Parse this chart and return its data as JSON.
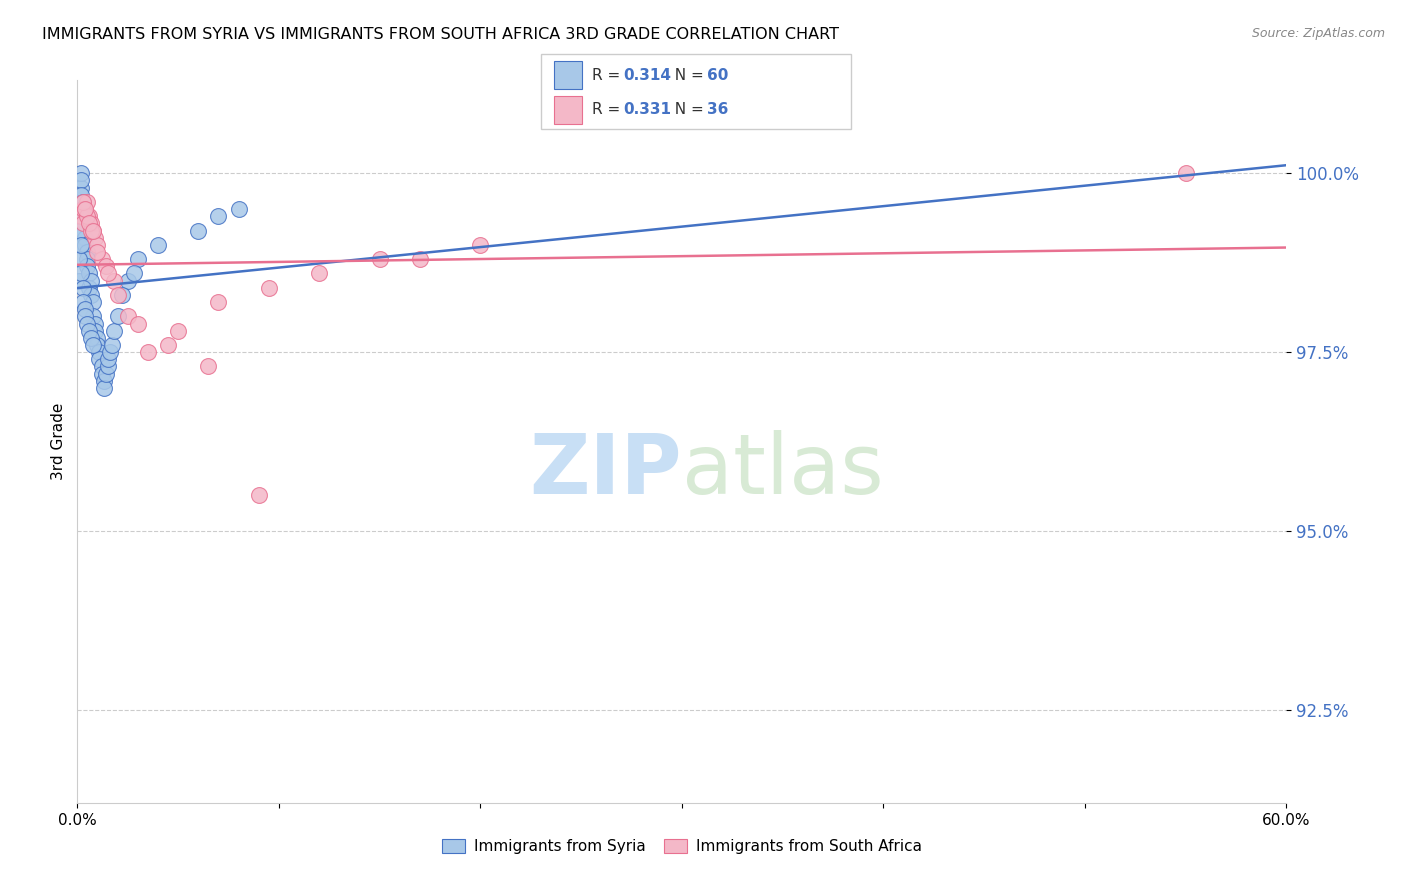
{
  "title": "IMMIGRANTS FROM SYRIA VS IMMIGRANTS FROM SOUTH AFRICA 3RD GRADE CORRELATION CHART",
  "source": "Source: ZipAtlas.com",
  "ylabel_label": "3rd Grade",
  "legend_syria": "Immigrants from Syria",
  "legend_sa": "Immigrants from South Africa",
  "R_syria": "0.314",
  "N_syria": "60",
  "R_sa": "0.331",
  "N_sa": "36",
  "color_syria_fill": "#a8c8e8",
  "color_sa_fill": "#f4b8c8",
  "color_syria_edge": "#4472c4",
  "color_sa_edge": "#e87090",
  "color_text_blue": "#4472c4",
  "color_watermark": "#ddeeff",
  "xlim": [
    0.0,
    0.6
  ],
  "ylim": [
    91.2,
    101.3
  ],
  "yticks": [
    92.5,
    95.0,
    97.5,
    100.0
  ],
  "ytick_labels": [
    "92.5%",
    "95.0%",
    "97.5%",
    "100.0%"
  ],
  "syria_x": [
    0.001,
    0.001,
    0.001,
    0.002,
    0.002,
    0.002,
    0.002,
    0.003,
    0.003,
    0.003,
    0.003,
    0.004,
    0.004,
    0.004,
    0.005,
    0.005,
    0.005,
    0.006,
    0.006,
    0.007,
    0.007,
    0.008,
    0.008,
    0.009,
    0.009,
    0.01,
    0.01,
    0.011,
    0.011,
    0.012,
    0.012,
    0.013,
    0.013,
    0.014,
    0.015,
    0.015,
    0.016,
    0.017,
    0.018,
    0.02,
    0.001,
    0.001,
    0.002,
    0.002,
    0.003,
    0.003,
    0.004,
    0.004,
    0.005,
    0.006,
    0.007,
    0.008,
    0.025,
    0.03,
    0.04,
    0.06,
    0.07,
    0.08,
    0.022,
    0.028
  ],
  "syria_y": [
    98.5,
    99.0,
    99.5,
    99.8,
    100.0,
    99.9,
    99.7,
    99.6,
    99.5,
    99.4,
    99.2,
    99.3,
    99.1,
    99.0,
    98.9,
    98.8,
    98.7,
    98.6,
    98.4,
    98.5,
    98.3,
    98.2,
    98.0,
    97.9,
    97.8,
    97.7,
    97.6,
    97.5,
    97.4,
    97.3,
    97.2,
    97.1,
    97.0,
    97.2,
    97.3,
    97.4,
    97.5,
    97.6,
    97.8,
    98.0,
    98.8,
    99.2,
    99.0,
    98.6,
    98.4,
    98.2,
    98.1,
    98.0,
    97.9,
    97.8,
    97.7,
    97.6,
    98.5,
    98.8,
    99.0,
    99.2,
    99.4,
    99.5,
    98.3,
    98.6
  ],
  "sa_x": [
    0.002,
    0.003,
    0.004,
    0.005,
    0.006,
    0.007,
    0.008,
    0.009,
    0.01,
    0.012,
    0.014,
    0.018,
    0.025,
    0.035,
    0.05,
    0.07,
    0.095,
    0.12,
    0.15,
    0.2,
    0.003,
    0.005,
    0.007,
    0.01,
    0.015,
    0.02,
    0.03,
    0.045,
    0.065,
    0.09,
    0.003,
    0.004,
    0.006,
    0.008,
    0.55,
    0.17
  ],
  "sa_y": [
    99.4,
    99.3,
    99.5,
    99.6,
    99.4,
    99.3,
    99.2,
    99.1,
    99.0,
    98.8,
    98.7,
    98.5,
    98.0,
    97.5,
    97.8,
    98.2,
    98.4,
    98.6,
    98.8,
    99.0,
    99.5,
    99.4,
    99.2,
    98.9,
    98.6,
    98.3,
    97.9,
    97.6,
    97.3,
    95.5,
    99.6,
    99.5,
    99.3,
    99.2,
    100.0,
    98.8
  ]
}
